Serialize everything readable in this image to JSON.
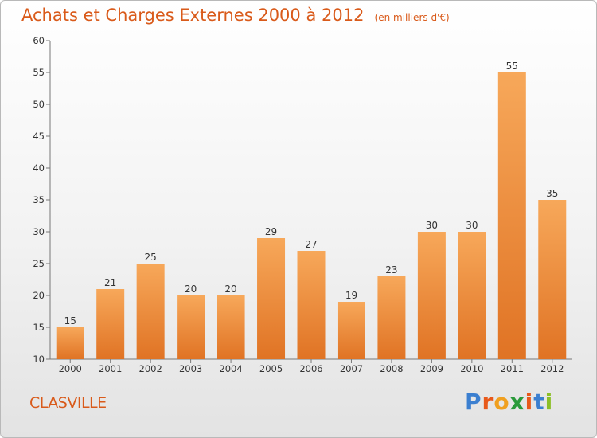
{
  "title": "Achats et Charges Externes 2000 à 2012",
  "subtitle": "(en milliers d'€)",
  "town": "CLASVILLE",
  "logo": {
    "letters": [
      "P",
      "r",
      "o",
      "x",
      "i",
      "t",
      "i"
    ],
    "colors": [
      "#3b7fd0",
      "#e8591a",
      "#f0a020",
      "#2a9a3a",
      "#e8591a",
      "#3b7fd0",
      "#8cbf26"
    ]
  },
  "colors": {
    "bar_light": "#f7a85a",
    "bar_dark": "#e07324",
    "title": "#d95a1a"
  },
  "chart_data": {
    "type": "bar",
    "categories": [
      "2000",
      "2001",
      "2002",
      "2003",
      "2004",
      "2005",
      "2006",
      "2007",
      "2008",
      "2009",
      "2010",
      "2011",
      "2012"
    ],
    "values": [
      15,
      21,
      25,
      20,
      20,
      29,
      27,
      19,
      23,
      30,
      30,
      55,
      35
    ],
    "ylim": [
      10,
      60
    ],
    "yticks": [
      10,
      15,
      20,
      25,
      30,
      35,
      40,
      45,
      50,
      55,
      60
    ],
    "grid": false,
    "xlabel": "",
    "ylabel": ""
  }
}
